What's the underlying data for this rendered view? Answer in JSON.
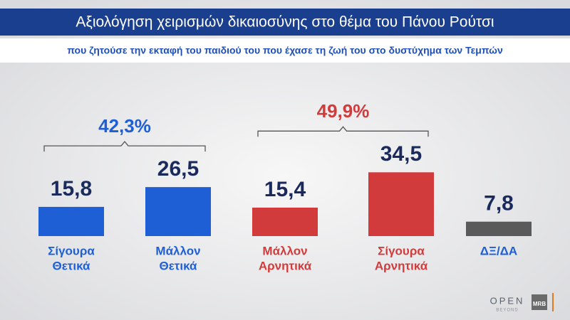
{
  "chart_data": {
    "type": "bar",
    "title": "Αξιολόγηση χειρισμών δικαιοσύνης στο θέμα του Πάνου Ρούτσι",
    "subtitle": "που ζητούσε την εκταφή του παιδιού του που έχασε τη ζωή του στο δυστύχημα των Τεμπών",
    "categories": [
      [
        "Σίγουρα",
        "Θετικά"
      ],
      [
        "Μάλλον",
        "Θετικά"
      ],
      [
        "Μάλλον",
        "Αρνητικά"
      ],
      [
        "Σίγουρα",
        "Αρνητικά"
      ],
      [
        "ΔΞ/ΔΑ"
      ]
    ],
    "values": [
      15.8,
      26.5,
      15.4,
      34.5,
      7.8
    ],
    "value_labels": [
      "15,8",
      "26,5",
      "15,4",
      "34,5",
      "7,8"
    ],
    "colors": [
      "#1f5fd6",
      "#1f5fd6",
      "#d23b3b",
      "#d23b3b",
      "#5a5a5a"
    ],
    "label_colors": [
      "#1f5fd6",
      "#1f5fd6",
      "#d23b3b",
      "#d23b3b",
      "#1f5fd6"
    ],
    "bracket_totals": [
      {
        "value": 42.3,
        "label": "42,3%",
        "color": "#1f5fd6"
      },
      {
        "value": 49.9,
        "label": "49,9%",
        "color": "#d23b3b"
      }
    ]
  },
  "branding": {
    "channel": "OPEN",
    "channel_tagline": "BEYOND",
    "pollster": "MRB"
  }
}
